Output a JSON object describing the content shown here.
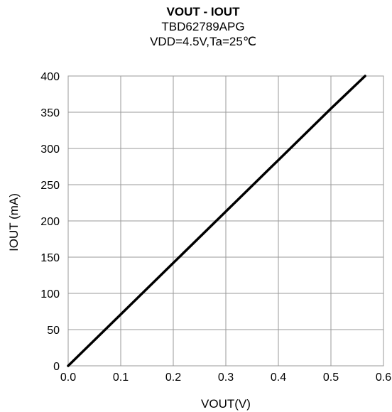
{
  "chart_data": {
    "type": "line",
    "title": "VOUT - IOUT",
    "subtitle_lines": [
      "TBD62789APG",
      "VDD=4.5V,Ta=25℃"
    ],
    "xlabel": "VOUT(V)",
    "ylabel": "IOUT (mA)",
    "xlim": [
      0,
      0.6
    ],
    "ylim": [
      0,
      400
    ],
    "x_ticks": [
      "0.0",
      "0.1",
      "0.2",
      "0.3",
      "0.4",
      "0.5",
      "0.6"
    ],
    "y_ticks": [
      "0",
      "50",
      "100",
      "150",
      "200",
      "250",
      "300",
      "350",
      "400"
    ],
    "grid": true,
    "series": [
      {
        "color": "#000000",
        "x": [
          0.0,
          0.1,
          0.2,
          0.3,
          0.4,
          0.5,
          0.565
        ],
        "y": [
          0,
          71,
          142,
          213,
          284,
          355,
          400
        ]
      }
    ]
  }
}
